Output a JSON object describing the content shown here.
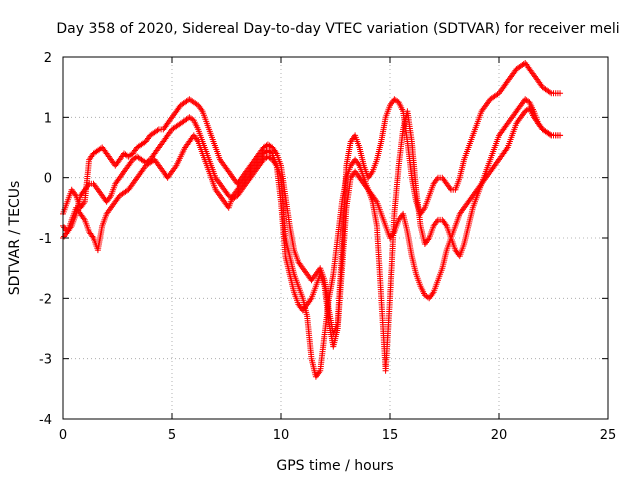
{
  "chart_data": {
    "type": "scatter",
    "title": "Day 358 of 2020, Sidereal Day-to-day VTEC variation (SDTVAR) for receiver meli",
    "xlabel": "GPS time / hours",
    "ylabel": "SDTVAR / TECUs",
    "xlim": [
      0,
      25
    ],
    "ylim": [
      -4,
      2
    ],
    "xticks": [
      0,
      5,
      10,
      15,
      20,
      25
    ],
    "yticks": [
      -4,
      -3,
      -2,
      -1,
      0,
      1,
      2
    ],
    "grid": true,
    "marker": "+",
    "series": [
      {
        "name": "track-a",
        "color": "#ff0000",
        "x": [
          0.0,
          0.2,
          0.4,
          0.6,
          0.8,
          1.0,
          1.2,
          1.4,
          1.6,
          1.8,
          2.0,
          2.2,
          2.4,
          2.6,
          2.8,
          3.0,
          3.2,
          3.4,
          3.6,
          3.8,
          4.0,
          4.2,
          4.4,
          4.6,
          4.8,
          5.0,
          5.2,
          5.4,
          5.6,
          5.8,
          6.0,
          6.2,
          6.4,
          6.6,
          6.8,
          7.0,
          7.2,
          7.4,
          7.6,
          7.8,
          8.0,
          8.2,
          8.4,
          8.6,
          8.8,
          9.0,
          9.2,
          9.4,
          9.6,
          9.8,
          10.0,
          10.2,
          10.4,
          10.6,
          10.8,
          11.0,
          11.2,
          11.4,
          11.6,
          11.8,
          12.0,
          12.2,
          12.4,
          12.6,
          12.8,
          13.0,
          13.2,
          13.4,
          13.6,
          13.8,
          14.0,
          14.2,
          14.4,
          14.6,
          14.8,
          15.0,
          15.2,
          15.4,
          15.6,
          15.8,
          16.0,
          16.2,
          16.4,
          16.6,
          16.8,
          17.0,
          17.2,
          17.4,
          17.6,
          17.8,
          18.0,
          18.2,
          18.4,
          18.6,
          18.8,
          19.0,
          19.2,
          19.4,
          19.6,
          19.8,
          20.0,
          20.2,
          20.4,
          20.6,
          20.8,
          21.0,
          21.2,
          21.4,
          21.6,
          21.8,
          22.0,
          22.2,
          22.4,
          22.6,
          22.8
        ],
        "y": [
          -0.6,
          -0.4,
          -0.2,
          -0.3,
          -0.5,
          -0.4,
          0.3,
          0.4,
          0.45,
          0.5,
          0.4,
          0.3,
          0.2,
          0.3,
          0.4,
          0.35,
          0.4,
          0.5,
          0.55,
          0.6,
          0.7,
          0.75,
          0.8,
          0.8,
          0.9,
          1.0,
          1.1,
          1.2,
          1.25,
          1.3,
          1.25,
          1.2,
          1.1,
          0.9,
          0.7,
          0.5,
          0.3,
          0.2,
          0.1,
          0.0,
          -0.1,
          0.0,
          0.1,
          0.2,
          0.3,
          0.4,
          0.5,
          0.55,
          0.5,
          0.4,
          0.2,
          -0.3,
          -0.8,
          -1.2,
          -1.4,
          -1.5,
          -1.6,
          -1.7,
          -1.6,
          -1.5,
          -1.7,
          -2.2,
          -2.6,
          -2.4,
          -1.2,
          0.2,
          0.6,
          0.7,
          0.5,
          0.2,
          0.0,
          0.1,
          0.3,
          0.6,
          1.0,
          1.2,
          1.3,
          1.25,
          1.1,
          0.6,
          0.0,
          -0.4,
          -0.6,
          -0.5,
          -0.3,
          -0.1,
          0.0,
          0.0,
          -0.1,
          -0.2,
          -0.2,
          0.0,
          0.3,
          0.5,
          0.7,
          0.9,
          1.1,
          1.2,
          1.3,
          1.35,
          1.4,
          1.5,
          1.6,
          1.7,
          1.8,
          1.85,
          1.9,
          1.8,
          1.7,
          1.6,
          1.5,
          1.45,
          1.4,
          1.4,
          1.4
        ]
      },
      {
        "name": "track-b",
        "color": "#ff0000",
        "x": [
          0.0,
          0.2,
          0.4,
          0.6,
          0.8,
          1.0,
          1.2,
          1.4,
          1.6,
          1.8,
          2.0,
          2.2,
          2.4,
          2.6,
          2.8,
          3.0,
          3.2,
          3.4,
          3.6,
          3.8,
          4.0,
          4.2,
          4.4,
          4.6,
          4.8,
          5.0,
          5.2,
          5.4,
          5.6,
          5.8,
          6.0,
          6.2,
          6.4,
          6.6,
          6.8,
          7.0,
          7.2,
          7.4,
          7.6,
          7.8,
          8.0,
          8.2,
          8.4,
          8.6,
          8.8,
          9.0,
          9.2,
          9.4,
          9.6,
          9.8,
          10.0,
          10.2,
          10.4,
          10.6,
          10.8,
          11.0,
          11.2,
          11.4,
          11.6,
          11.8,
          12.0,
          12.2,
          12.4,
          12.6,
          12.8,
          13.0,
          13.2,
          13.4,
          13.6,
          13.8,
          14.0,
          14.2,
          14.4,
          14.6,
          14.8,
          15.0,
          15.2,
          15.4,
          15.6,
          15.8,
          16.0,
          16.2,
          16.4,
          16.6,
          16.8,
          17.0,
          17.2,
          17.4,
          17.6,
          17.8,
          18.0,
          18.2,
          18.4,
          18.6,
          18.8,
          19.0,
          19.2,
          19.4,
          19.6,
          19.8,
          20.0,
          20.2,
          20.4,
          20.6,
          20.8,
          21.0,
          21.2,
          21.4,
          21.6,
          21.8,
          22.0,
          22.2,
          22.4,
          22.6,
          22.8
        ],
        "y": [
          -1.0,
          -0.9,
          -0.8,
          -0.6,
          -0.3,
          -0.2,
          -0.1,
          -0.1,
          -0.2,
          -0.3,
          -0.4,
          -0.3,
          -0.1,
          0.0,
          0.1,
          0.2,
          0.3,
          0.35,
          0.3,
          0.25,
          0.3,
          0.4,
          0.5,
          0.6,
          0.7,
          0.8,
          0.85,
          0.9,
          0.95,
          1.0,
          0.95,
          0.8,
          0.6,
          0.4,
          0.2,
          0.0,
          -0.1,
          -0.2,
          -0.3,
          -0.35,
          -0.3,
          -0.2,
          -0.1,
          0.0,
          0.1,
          0.2,
          0.3,
          0.35,
          0.3,
          0.2,
          0.0,
          -1.0,
          -1.3,
          -1.6,
          -1.8,
          -2.0,
          -2.3,
          -3.0,
          -3.3,
          -3.2,
          -2.6,
          -2.0,
          -1.6,
          -1.0,
          -0.4,
          0.0,
          0.2,
          0.3,
          0.2,
          0.0,
          -0.2,
          -0.4,
          -0.8,
          -2.0,
          -3.2,
          -2.0,
          -0.6,
          0.2,
          0.8,
          1.1,
          0.6,
          -0.2,
          -0.8,
          -1.1,
          -1.0,
          -0.8,
          -0.7,
          -0.7,
          -0.8,
          -1.0,
          -1.2,
          -1.3,
          -1.1,
          -0.8,
          -0.5,
          -0.3,
          -0.1,
          0.1,
          0.3,
          0.5,
          0.7,
          0.8,
          0.9,
          1.0,
          1.1,
          1.2,
          1.3,
          1.25,
          1.1,
          0.9,
          0.8,
          0.75,
          0.7,
          0.7,
          0.7
        ]
      },
      {
        "name": "track-c",
        "color": "#ff0000",
        "x": [
          0.0,
          0.2,
          0.4,
          0.6,
          0.8,
          1.0,
          1.2,
          1.4,
          1.6,
          1.8,
          2.0,
          2.2,
          2.4,
          2.6,
          2.8,
          3.0,
          3.2,
          3.4,
          3.6,
          3.8,
          4.0,
          4.2,
          4.4,
          4.6,
          4.8,
          5.0,
          5.2,
          5.4,
          5.6,
          5.8,
          6.0,
          6.2,
          6.4,
          6.6,
          6.8,
          7.0,
          7.2,
          7.4,
          7.6,
          7.8,
          8.0,
          8.2,
          8.4,
          8.6,
          8.8,
          9.0,
          9.2,
          9.4,
          9.6,
          9.8,
          10.0,
          10.2,
          10.4,
          10.6,
          10.8,
          11.0,
          11.2,
          11.4,
          11.6,
          11.8,
          12.0,
          12.2,
          12.4,
          12.6,
          12.8,
          13.0,
          13.2,
          13.4,
          13.6,
          13.8,
          14.0,
          14.2,
          14.4,
          14.6,
          14.8,
          15.0,
          15.2,
          15.4,
          15.6,
          15.8,
          16.0,
          16.2,
          16.4,
          16.6,
          16.8,
          17.0,
          17.2,
          17.4,
          17.6,
          17.8,
          18.0,
          18.2,
          18.4,
          18.6,
          18.8,
          19.0,
          19.2,
          19.4,
          19.6,
          19.8,
          20.0,
          20.2,
          20.4,
          20.6,
          20.8,
          21.0,
          21.2,
          21.4,
          21.6,
          21.8,
          22.0,
          22.2,
          22.4,
          22.6,
          22.8
        ],
        "y": [
          -0.8,
          -0.9,
          -0.7,
          -0.5,
          -0.6,
          -0.7,
          -0.9,
          -1.0,
          -1.2,
          -0.8,
          -0.6,
          -0.5,
          -0.4,
          -0.3,
          -0.25,
          -0.2,
          -0.1,
          0.0,
          0.1,
          0.2,
          0.25,
          0.3,
          0.2,
          0.1,
          0.0,
          0.1,
          0.2,
          0.35,
          0.5,
          0.6,
          0.7,
          0.6,
          0.4,
          0.2,
          0.0,
          -0.2,
          -0.3,
          -0.4,
          -0.5,
          -0.3,
          -0.2,
          -0.1,
          0.0,
          0.1,
          0.2,
          0.3,
          0.4,
          0.45,
          0.4,
          0.2,
          -0.4,
          -1.3,
          -1.6,
          -1.9,
          -2.1,
          -2.2,
          -2.1,
          -2.0,
          -1.8,
          -1.6,
          -1.8,
          -2.4,
          -2.8,
          -2.5,
          -1.5,
          -0.5,
          0.0,
          0.1,
          0.0,
          -0.1,
          -0.2,
          -0.3,
          -0.4,
          -0.6,
          -0.8,
          -1.0,
          -0.9,
          -0.7,
          -0.6,
          -0.9,
          -1.3,
          -1.6,
          -1.8,
          -1.95,
          -2.0,
          -1.9,
          -1.7,
          -1.5,
          -1.2,
          -1.0,
          -0.8,
          -0.6,
          -0.5,
          -0.4,
          -0.3,
          -0.2,
          -0.1,
          0.0,
          0.1,
          0.2,
          0.3,
          0.4,
          0.5,
          0.7,
          0.9,
          1.0,
          1.1,
          1.15,
          1.0,
          0.9,
          0.8,
          0.75,
          0.7,
          0.7,
          0.7
        ]
      }
    ]
  }
}
